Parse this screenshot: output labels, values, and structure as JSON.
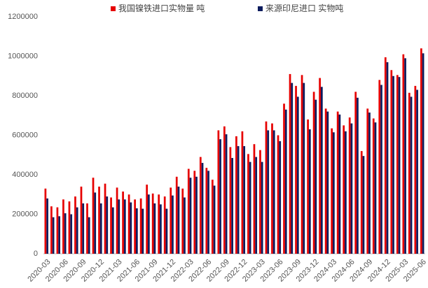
{
  "chart_data": {
    "type": "bar",
    "categories": [
      "2020-03",
      null,
      null,
      "2020-06",
      null,
      null,
      "2020-09",
      null,
      null,
      "2020-12",
      null,
      null,
      "2021-03",
      null,
      null,
      "2021-06",
      null,
      null,
      "2021-09",
      null,
      null,
      "2021-12",
      null,
      null,
      "2022-03",
      null,
      null,
      "2022-06",
      null,
      null,
      "2022-09",
      null,
      null,
      "2022-12",
      null,
      null,
      "2023-03",
      null,
      null,
      "2023-06",
      null,
      null,
      "2023-09",
      null,
      null,
      "2023-12",
      null,
      null,
      "2024-03",
      null,
      null,
      "2024-06",
      null,
      null,
      "2024-09",
      null,
      null,
      "2024-12",
      null,
      null,
      "2025-03",
      null,
      null,
      "2025-06"
    ],
    "series": [
      {
        "name": "我国镍铁进口实物量 吨",
        "color": "#e60000",
        "values": [
          330000,
          240000,
          235000,
          275000,
          265000,
          290000,
          340000,
          255000,
          385000,
          340000,
          355000,
          285000,
          335000,
          315000,
          300000,
          275000,
          280000,
          350000,
          305000,
          300000,
          290000,
          335000,
          390000,
          330000,
          430000,
          420000,
          490000,
          435000,
          375000,
          625000,
          645000,
          540000,
          595000,
          620000,
          505000,
          555000,
          525000,
          670000,
          660000,
          600000,
          760000,
          910000,
          850000,
          905000,
          680000,
          820000,
          890000,
          735000,
          635000,
          720000,
          650000,
          690000,
          820000,
          520000,
          735000,
          685000,
          880000,
          995000,
          930000,
          905000,
          1010000,
          815000,
          850000,
          1040000
        ]
      },
      {
        "name": "来源印尼进口 实物吨",
        "color": "#0c1c5e",
        "values": [
          280000,
          185000,
          190000,
          205000,
          200000,
          235000,
          255000,
          185000,
          310000,
          255000,
          290000,
          235000,
          275000,
          275000,
          260000,
          230000,
          228000,
          300000,
          255000,
          250000,
          228000,
          295000,
          340000,
          285000,
          385000,
          390000,
          460000,
          420000,
          345000,
          580000,
          605000,
          485000,
          545000,
          545000,
          465000,
          490000,
          465000,
          625000,
          625000,
          570000,
          730000,
          865000,
          795000,
          865000,
          630000,
          780000,
          845000,
          720000,
          615000,
          705000,
          620000,
          660000,
          790000,
          495000,
          715000,
          665000,
          855000,
          970000,
          900000,
          895000,
          990000,
          795000,
          830000,
          1015000
        ]
      }
    ],
    "ylim": [
      0,
      1200000
    ],
    "yticks": [
      0,
      200000,
      400000,
      600000,
      800000,
      1000000,
      1200000
    ],
    "grid": false
  }
}
